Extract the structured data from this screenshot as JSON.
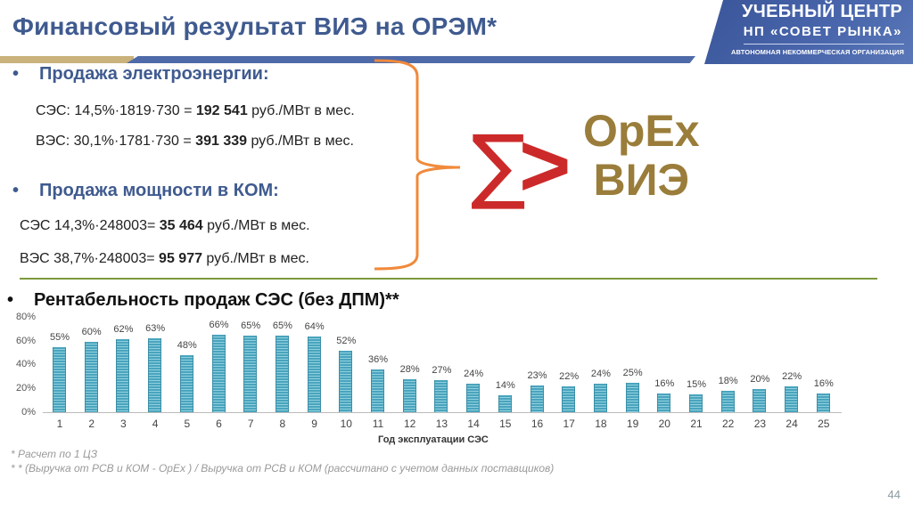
{
  "title": "Финансовый результат ВИЭ на ОРЭМ*",
  "logo": {
    "line1": "УЧЕБНЫЙ ЦЕНТР",
    "line2": "НП «СОВЕТ РЫНКА»",
    "line3": "АВТОНОМНАЯ НЕКОММЕРЧЕСКАЯ ОРГАНИЗАЦИЯ"
  },
  "section1": {
    "bullet": "•",
    "heading": "Продажа электроэнергии:",
    "rows": [
      {
        "prefix": "СЭС: 14,5%·1819·730 = ",
        "value": "192 541",
        "suffix": " руб./МВт в мес."
      },
      {
        "prefix": "ВЭС: 30,1%·1781·730 = ",
        "value": "391 339",
        "suffix": " руб./МВт в мес."
      }
    ]
  },
  "section2": {
    "bullet": "•",
    "heading": "Продажа мощности в КОМ:",
    "rows": [
      {
        "prefix": "СЭС 14,3%·248003= ",
        "value": "35 464",
        "suffix": " руб./МВт в мес."
      },
      {
        "prefix": "ВЭС 38,7%·248003= ",
        "value": "95 977",
        "suffix": " руб./МВт в мес."
      }
    ]
  },
  "formula": {
    "sigma": "∑",
    "gt": ">",
    "line1": "OpEx",
    "line2": "ВИЭ"
  },
  "colors": {
    "title_blue": "#3f5a8f",
    "gold": "#c9b27b",
    "brace_orange": "#f08a3c",
    "sigma_red": "#cc2a2a",
    "opex_gold": "#9a7d3a",
    "green_rule": "#7a9a3c",
    "bar_teal": "#4aa4bd"
  },
  "chart_heading": {
    "bullet": "•",
    "text": "Рентабельность продаж СЭС (без ДПМ)**"
  },
  "chart_data": {
    "type": "bar",
    "title": "Рентабельность продаж СЭС (без ДПМ)**",
    "xlabel": "Год эксплуатации СЭС",
    "ylabel": "",
    "categories": [
      "1",
      "2",
      "3",
      "4",
      "5",
      "6",
      "7",
      "8",
      "9",
      "10",
      "11",
      "12",
      "13",
      "14",
      "15",
      "16",
      "17",
      "18",
      "19",
      "20",
      "21",
      "22",
      "23",
      "24",
      "25"
    ],
    "values": [
      55,
      60,
      62,
      63,
      48,
      66,
      65,
      65,
      64,
      52,
      36,
      28,
      27,
      24,
      14,
      23,
      22,
      24,
      25,
      16,
      15,
      18,
      20,
      22,
      16
    ],
    "value_labels": [
      "55%",
      "60%",
      "62%",
      "63%",
      "48%",
      "66%",
      "65%",
      "65%",
      "64%",
      "52%",
      "36%",
      "28%",
      "27%",
      "24%",
      "14%",
      "23%",
      "22%",
      "24%",
      "25%",
      "16%",
      "15%",
      "18%",
      "20%",
      "22%",
      "16%"
    ],
    "y_ticks": [
      "80%",
      "60%",
      "40%",
      "20%",
      "0%"
    ],
    "ylim": [
      0,
      80
    ],
    "grid": false,
    "legend": "none"
  },
  "footnotes": [
    "* Расчет по 1 ЦЗ",
    "* * (Выручка от РСВ и КОМ - OpEx ) / Выручка от РСВ и КОМ (рассчитано с учетом данных поставщиков)"
  ],
  "page_number": "44"
}
